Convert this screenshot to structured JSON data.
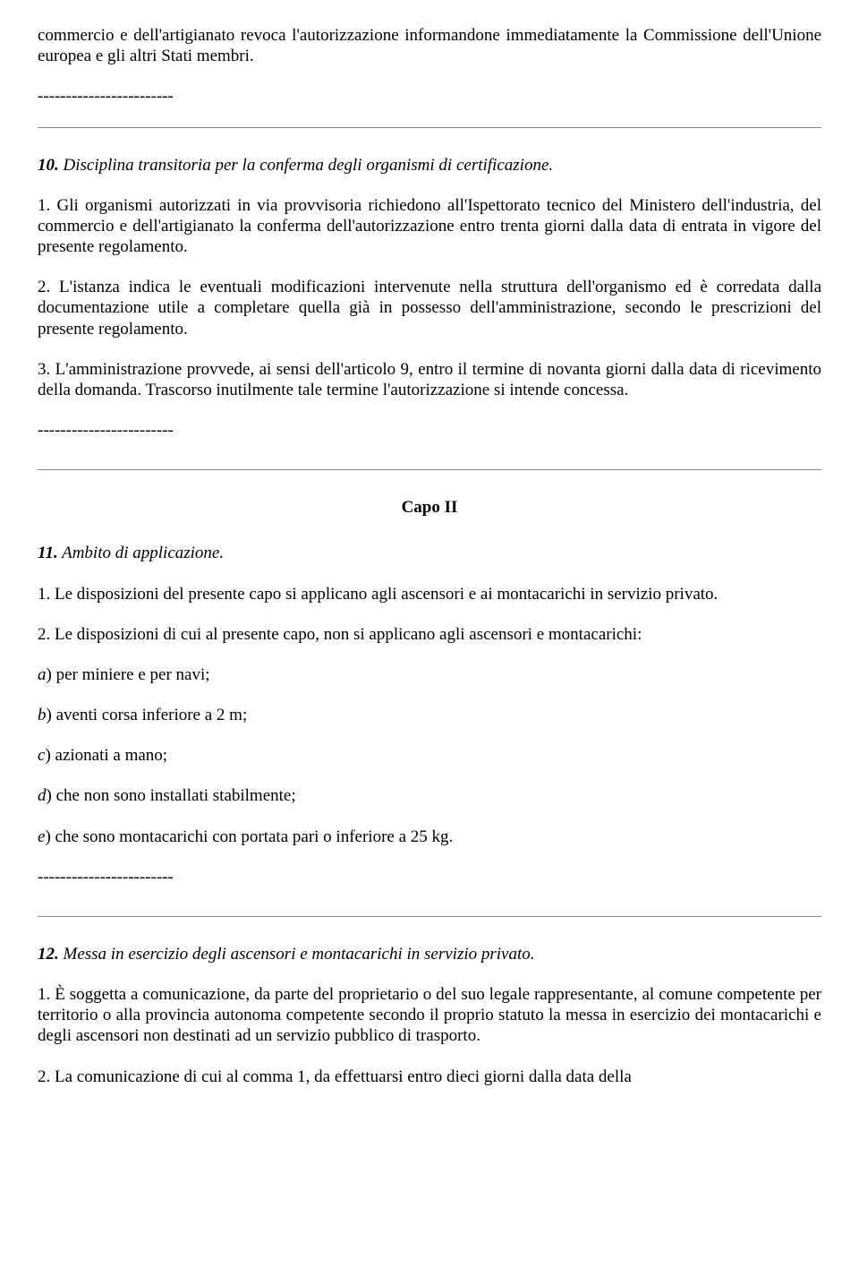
{
  "p1": "commercio e dell'artigianato revoca l'autorizzazione informandone immediatamente la Commissione dell'Unione europea e gli altri Stati membri.",
  "dashes": "------------------------",
  "art10_num": "10.",
  "art10_title": " Disciplina transitoria per la conferma degli organismi di certificazione.",
  "art10_p1": "1. Gli organismi autorizzati in via provvisoria richiedono all'Ispettorato tecnico del Ministero dell'industria, del commercio e dell'artigianato la conferma dell'autorizzazione entro trenta giorni dalla data di entrata in vigore del presente regolamento.",
  "art10_p2": "2. L'istanza indica le eventuali modificazioni intervenute nella struttura dell'organismo ed è corredata dalla documentazione utile a completare quella già in possesso dell'amministrazione, secondo le prescrizioni del presente regolamento.",
  "art10_p3": "3. L'amministrazione provvede, ai sensi dell'articolo 9, entro il termine di novanta giorni dalla data di ricevimento della domanda. Trascorso inutilmente tale termine l'autorizzazione si intende concessa.",
  "capo": "Capo II",
  "art11_num": "11.",
  "art11_title": " Ambito di applicazione.",
  "art11_p1": "1. Le disposizioni del presente capo si applicano agli ascensori e ai montacarichi in servizio privato.",
  "art11_p2": "2. Le disposizioni di cui al presente capo, non si applicano agli ascensori e montacarichi:",
  "art11_a_letter": "a",
  "art11_a_rest": ") per miniere e per navi;",
  "art11_b_letter": "b",
  "art11_b_rest": ") aventi corsa inferiore a 2 m;",
  "art11_c_letter": "c",
  "art11_c_rest": ") azionati a mano;",
  "art11_d_letter": "d",
  "art11_d_rest": ") che non sono installati stabilmente;",
  "art11_e_letter": "e",
  "art11_e_rest": ") che sono montacarichi con portata pari o inferiore a 25 kg.",
  "art12_num": "12.",
  "art12_title": " Messa in esercizio degli ascensori e montacarichi in servizio privato.",
  "art12_p1": "1. È soggetta a comunicazione, da parte del proprietario o del suo legale rappresentante, al comune competente per territorio o alla provincia autonoma competente secondo il proprio statuto la messa in esercizio dei montacarichi e degli ascensori non destinati ad un servizio pubblico di trasporto.",
  "art12_p2": "2. La comunicazione di cui al comma 1, da effettuarsi entro dieci giorni dalla data della"
}
